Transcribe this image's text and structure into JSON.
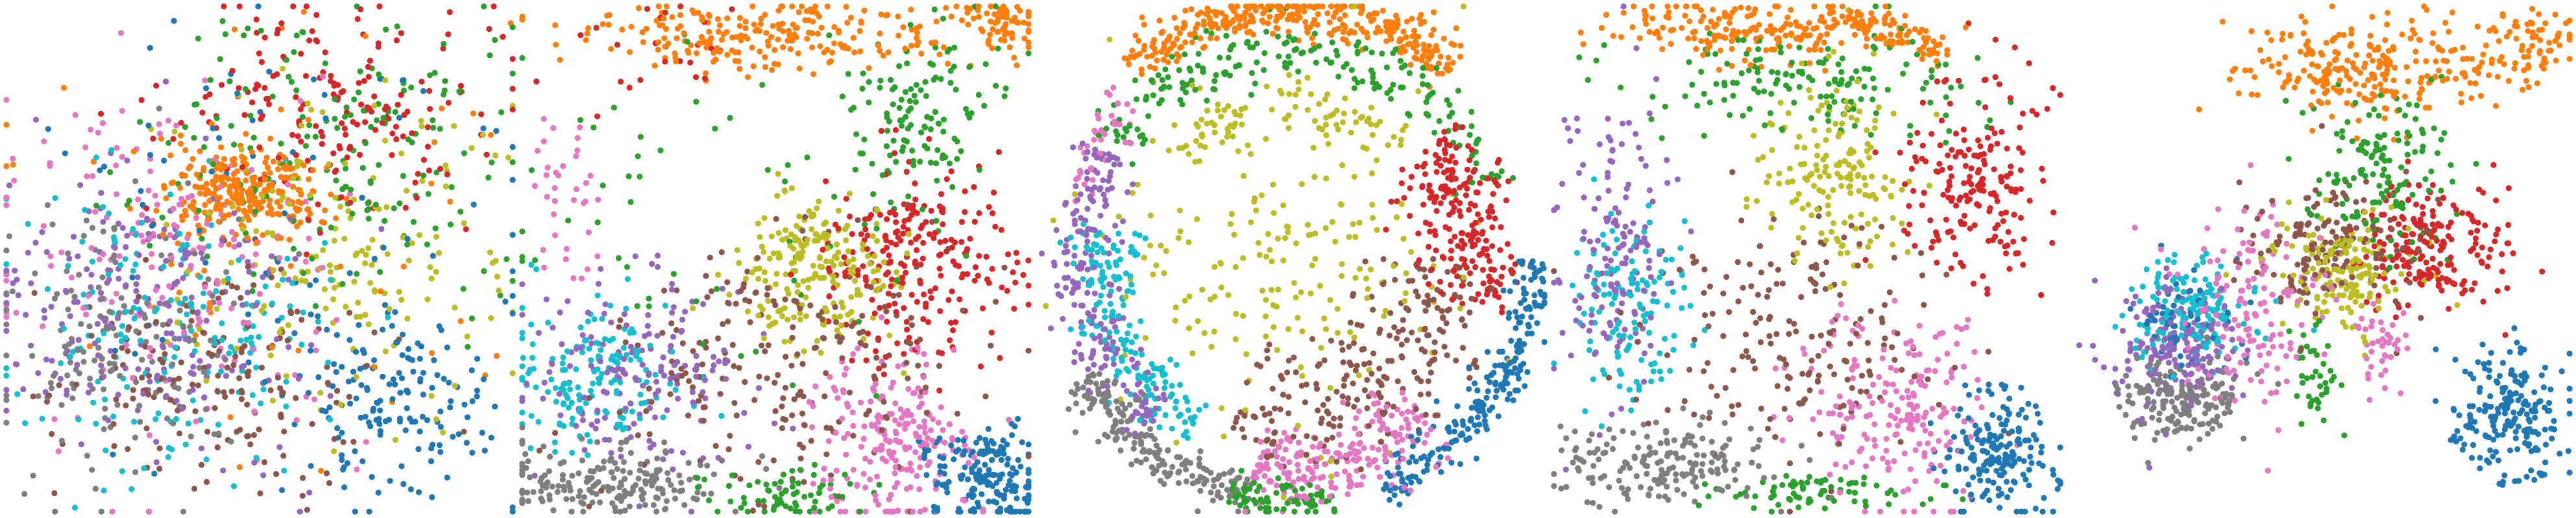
{
  "figure": {
    "background": "#ffffff",
    "palette": {
      "blue": "#1f77b4",
      "orange": "#ff7f0e",
      "green": "#2ca02c",
      "red": "#d62728",
      "purple": "#9467bd",
      "brown": "#8c564b",
      "pink": "#e377c2",
      "gray": "#7f7f7f",
      "olive": "#bcbd22",
      "cyan": "#17becf"
    }
  },
  "chart_data": [
    {
      "type": "scatter",
      "title": "",
      "xlabel": "",
      "ylabel": "",
      "axes_visible": false,
      "grid": false,
      "legend": "none",
      "xlim": [
        -1,
        1
      ],
      "ylim": [
        -1,
        1
      ],
      "series": [
        {
          "color": "orange",
          "clusters": [
            {
              "x": -0.05,
              "y": 0.25,
              "sx": 0.15,
              "sy": 0.09,
              "n": 260
            },
            {
              "x": 0.0,
              "y": 0.0,
              "sx": 0.45,
              "sy": 0.45,
              "n": 50
            }
          ]
        },
        {
          "color": "blue",
          "clusters": [
            {
              "x": 0.55,
              "y": -0.55,
              "sx": 0.18,
              "sy": 0.18,
              "n": 140
            },
            {
              "x": 0.1,
              "y": 0.05,
              "sx": 0.55,
              "sy": 0.55,
              "n": 90
            }
          ]
        },
        {
          "color": "red",
          "clusters": [
            {
              "x": 0.25,
              "y": 0.6,
              "sx": 0.3,
              "sy": 0.2,
              "n": 180
            }
          ]
        },
        {
          "color": "green",
          "clusters": [
            {
              "x": 0.35,
              "y": 0.4,
              "sx": 0.35,
              "sy": 0.3,
              "n": 180
            }
          ]
        },
        {
          "color": "purple",
          "clusters": [
            {
              "x": -0.45,
              "y": -0.15,
              "sx": 0.3,
              "sy": 0.3,
              "n": 200
            }
          ]
        },
        {
          "color": "cyan",
          "clusters": [
            {
              "x": -0.35,
              "y": -0.25,
              "sx": 0.3,
              "sy": 0.3,
              "n": 180
            }
          ]
        },
        {
          "color": "brown",
          "clusters": [
            {
              "x": -0.2,
              "y": -0.45,
              "sx": 0.3,
              "sy": 0.25,
              "n": 180
            }
          ]
        },
        {
          "color": "gray",
          "clusters": [
            {
              "x": -0.55,
              "y": -0.3,
              "sx": 0.25,
              "sy": 0.3,
              "n": 170
            }
          ]
        },
        {
          "color": "pink",
          "clusters": [
            {
              "x": -0.3,
              "y": 0.0,
              "sx": 0.35,
              "sy": 0.35,
              "n": 170
            }
          ]
        },
        {
          "color": "olive",
          "clusters": [
            {
              "x": 0.3,
              "y": 0.05,
              "sx": 0.3,
              "sy": 0.3,
              "n": 170
            }
          ]
        }
      ]
    },
    {
      "type": "scatter",
      "title": "",
      "xlabel": "",
      "ylabel": "",
      "axes_visible": false,
      "grid": false,
      "legend": "none",
      "xlim": [
        -1,
        1
      ],
      "ylim": [
        -1,
        1
      ],
      "series": [
        {
          "color": "orange",
          "clusters": [
            {
              "x": 0.0,
              "y": 0.88,
              "sx": 0.42,
              "sy": 0.07,
              "n": 240
            },
            {
              "x": 0.88,
              "y": 0.93,
              "sx": 0.07,
              "sy": 0.05,
              "n": 60
            }
          ]
        },
        {
          "color": "green",
          "clusters": [
            {
              "x": 0.6,
              "y": 0.55,
              "sx": 0.15,
              "sy": 0.2,
              "n": 130
            },
            {
              "x": 0.05,
              "y": -0.92,
              "sx": 0.18,
              "sy": 0.05,
              "n": 70
            },
            {
              "x": -0.3,
              "y": 0.2,
              "sx": 0.45,
              "sy": 0.4,
              "n": 50
            }
          ]
        },
        {
          "color": "red",
          "clusters": [
            {
              "x": 0.55,
              "y": 0.0,
              "sx": 0.2,
              "sy": 0.2,
              "n": 230
            },
            {
              "x": -0.5,
              "y": 0.8,
              "sx": 0.2,
              "sy": 0.12,
              "n": 25
            }
          ]
        },
        {
          "color": "olive",
          "clusters": [
            {
              "x": 0.15,
              "y": -0.05,
              "sx": 0.17,
              "sy": 0.17,
              "n": 210
            }
          ]
        },
        {
          "color": "pink",
          "clusters": [
            {
              "x": 0.45,
              "y": -0.72,
              "sx": 0.15,
              "sy": 0.18,
              "n": 220
            },
            {
              "x": -0.82,
              "y": 0.3,
              "sx": 0.08,
              "sy": 0.25,
              "n": 35
            }
          ]
        },
        {
          "color": "blue",
          "clusters": [
            {
              "x": 0.82,
              "y": -0.85,
              "sx": 0.12,
              "sy": 0.1,
              "n": 180
            }
          ]
        },
        {
          "color": "gray",
          "clusters": [
            {
              "x": -0.65,
              "y": -0.88,
              "sx": 0.22,
              "sy": 0.07,
              "n": 190
            }
          ]
        },
        {
          "color": "cyan",
          "clusters": [
            {
              "x": -0.7,
              "y": -0.45,
              "sx": 0.18,
              "sy": 0.15,
              "n": 160
            }
          ]
        },
        {
          "color": "purple",
          "clusters": [
            {
              "x": -0.5,
              "y": -0.45,
              "sx": 0.22,
              "sy": 0.2,
              "n": 170
            }
          ]
        },
        {
          "color": "brown",
          "clusters": [
            {
              "x": 0.0,
              "y": -0.4,
              "sx": 0.35,
              "sy": 0.25,
              "n": 220
            }
          ]
        }
      ]
    },
    {
      "type": "scatter",
      "title": "",
      "xlabel": "",
      "ylabel": "",
      "axes_visible": false,
      "grid": false,
      "legend": "none",
      "xlim": [
        -1,
        1
      ],
      "ylim": [
        -1,
        1
      ],
      "series": [
        {
          "color": "orange",
          "rings": [
            {
              "r": 0.97,
              "a0": 50,
              "a1": 130,
              "w": 0.05,
              "n": 340
            }
          ]
        },
        {
          "color": "green",
          "rings": [
            {
              "r": 0.82,
              "a0": 20,
              "a1": 150,
              "w": 0.06,
              "n": 200
            },
            {
              "r": 0.95,
              "a0": 255,
              "a1": 280,
              "w": 0.03,
              "n": 80
            }
          ]
        },
        {
          "color": "red",
          "rings": [
            {
              "r": 0.72,
              "a0": -15,
              "a1": 40,
              "w": 0.1,
              "n": 220
            }
          ]
        },
        {
          "color": "olive",
          "clusters": [
            {
              "x": -0.05,
              "y": 0.0,
              "sx": 0.35,
              "sy": 0.35,
              "n": 200
            }
          ],
          "rings": [
            {
              "r": 0.6,
              "a0": 45,
              "a1": 135,
              "w": 0.05,
              "n": 80
            }
          ]
        },
        {
          "color": "purple",
          "rings": [
            {
              "r": 0.82,
              "a0": 150,
              "a1": 230,
              "w": 0.06,
              "n": 200
            }
          ]
        },
        {
          "color": "cyan",
          "rings": [
            {
              "r": 0.73,
              "a0": 170,
              "a1": 240,
              "w": 0.06,
              "n": 170
            }
          ]
        },
        {
          "color": "gray",
          "rings": [
            {
              "r": 0.93,
              "a0": 210,
              "a1": 260,
              "w": 0.05,
              "n": 190
            }
          ]
        },
        {
          "color": "pink",
          "rings": [
            {
              "r": 0.82,
              "a0": 260,
              "a1": 310,
              "w": 0.08,
              "n": 210
            },
            {
              "r": 0.88,
              "a0": 135,
              "a1": 165,
              "w": 0.04,
              "n": 40
            }
          ]
        },
        {
          "color": "blue",
          "rings": [
            {
              "r": 0.95,
              "a0": 290,
              "a1": 360,
              "w": 0.05,
              "n": 220
            }
          ]
        },
        {
          "color": "brown",
          "rings": [
            {
              "r": 0.6,
              "a0": 250,
              "a1": 360,
              "w": 0.12,
              "n": 230
            }
          ]
        }
      ]
    },
    {
      "type": "scatter",
      "title": "",
      "xlabel": "",
      "ylabel": "",
      "axes_visible": false,
      "grid": false,
      "legend": "none",
      "xlim": [
        -1,
        1
      ],
      "ylim": [
        -1,
        1
      ],
      "series": [
        {
          "color": "orange",
          "clusters": [
            {
              "x": -0.2,
              "y": 0.9,
              "sx": 0.3,
              "sy": 0.06,
              "n": 200
            }
          ],
          "rings": [
            {
              "r": 0.96,
              "a0": 55,
              "a1": 85,
              "w": 0.03,
              "n": 70
            }
          ]
        },
        {
          "color": "green",
          "clusters": [
            {
              "x": 0.0,
              "y": 0.7,
              "sx": 0.35,
              "sy": 0.1,
              "n": 150
            },
            {
              "x": 0.0,
              "y": -0.92,
              "sx": 0.2,
              "sy": 0.04,
              "n": 70
            }
          ]
        },
        {
          "color": "red",
          "clusters": [
            {
              "x": 0.65,
              "y": 0.3,
              "sx": 0.15,
              "sy": 0.2,
              "n": 190
            }
          ]
        },
        {
          "color": "olive",
          "clusters": [
            {
              "x": 0.1,
              "y": 0.35,
              "sx": 0.15,
              "sy": 0.2,
              "n": 170
            }
          ]
        },
        {
          "color": "purple",
          "clusters": [
            {
              "x": -0.75,
              "y": 0.0,
              "sx": 0.1,
              "sy": 0.3,
              "n": 150
            }
          ]
        },
        {
          "color": "cyan",
          "clusters": [
            {
              "x": -0.7,
              "y": -0.2,
              "sx": 0.12,
              "sy": 0.2,
              "n": 130
            }
          ]
        },
        {
          "color": "gray",
          "clusters": [
            {
              "x": -0.55,
              "y": -0.8,
              "sx": 0.22,
              "sy": 0.08,
              "n": 180
            }
          ]
        },
        {
          "color": "pink",
          "clusters": [
            {
              "x": 0.35,
              "y": -0.6,
              "sx": 0.18,
              "sy": 0.2,
              "n": 200
            }
          ]
        },
        {
          "color": "blue",
          "clusters": [
            {
              "x": 0.75,
              "y": -0.75,
              "sx": 0.12,
              "sy": 0.12,
              "n": 180
            }
          ]
        },
        {
          "color": "brown",
          "clusters": [
            {
              "x": -0.05,
              "y": -0.3,
              "sx": 0.3,
              "sy": 0.25,
              "n": 190
            }
          ]
        }
      ]
    },
    {
      "type": "scatter",
      "title": "",
      "xlabel": "",
      "ylabel": "",
      "axes_visible": false,
      "grid": false,
      "legend": "none",
      "xlim": [
        -1,
        1
      ],
      "ylim": [
        -1,
        1
      ],
      "series": [
        {
          "color": "orange",
          "clusters": [
            {
              "x": 0.25,
              "y": 0.75,
              "sx": 0.3,
              "sy": 0.1,
              "n": 260
            },
            {
              "x": 0.85,
              "y": 0.85,
              "sx": 0.1,
              "sy": 0.06,
              "n": 60
            }
          ]
        },
        {
          "color": "red",
          "clusters": [
            {
              "x": 0.45,
              "y": 0.05,
              "sx": 0.15,
              "sy": 0.12,
              "n": 200
            }
          ]
        },
        {
          "color": "green",
          "clusters": [
            {
              "x": 0.25,
              "y": 0.35,
              "sx": 0.15,
              "sy": 0.15,
              "n": 140
            },
            {
              "x": 0.0,
              "y": -0.45,
              "sx": 0.05,
              "sy": 0.12,
              "n": 40
            }
          ]
        },
        {
          "color": "olive",
          "clusters": [
            {
              "x": 0.1,
              "y": -0.05,
              "sx": 0.12,
              "sy": 0.12,
              "n": 160
            }
          ]
        },
        {
          "color": "brown",
          "clusters": [
            {
              "x": 0.05,
              "y": 0.05,
              "sx": 0.18,
              "sy": 0.15,
              "n": 160
            }
          ]
        },
        {
          "color": "blue",
          "clusters": [
            {
              "x": 0.75,
              "y": -0.6,
              "sx": 0.12,
              "sy": 0.12,
              "n": 200
            },
            {
              "x": -0.55,
              "y": -0.25,
              "sx": 0.12,
              "sy": 0.12,
              "n": 60
            }
          ]
        },
        {
          "color": "purple",
          "clusters": [
            {
              "x": -0.55,
              "y": -0.35,
              "sx": 0.12,
              "sy": 0.12,
              "n": 180
            }
          ]
        },
        {
          "color": "cyan",
          "clusters": [
            {
              "x": -0.5,
              "y": -0.2,
              "sx": 0.12,
              "sy": 0.1,
              "n": 150
            }
          ]
        },
        {
          "color": "gray",
          "clusters": [
            {
              "x": -0.55,
              "y": -0.55,
              "sx": 0.12,
              "sy": 0.08,
              "n": 170
            }
          ]
        },
        {
          "color": "pink",
          "clusters": [
            {
              "x": -0.25,
              "y": -0.2,
              "sx": 0.15,
              "sy": 0.2,
              "n": 140
            },
            {
              "x": 0.25,
              "y": -0.35,
              "sx": 0.05,
              "sy": 0.12,
              "n": 40
            }
          ]
        }
      ]
    }
  ]
}
